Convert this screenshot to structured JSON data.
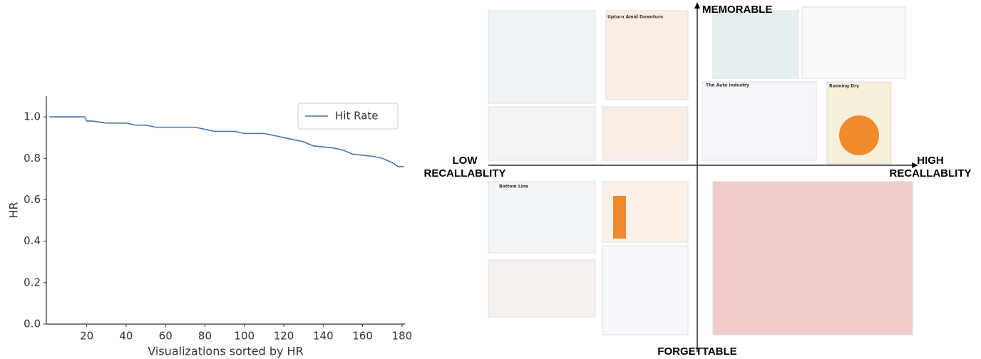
{
  "chart_data": {
    "type": "line",
    "x_label": "Visualizations sorted by HR",
    "y_label": "HR",
    "xlim": [
      -0.5,
      181.5
    ],
    "ylim": [
      0,
      1.1
    ],
    "xticks": [
      20,
      40,
      60,
      80,
      100,
      120,
      140,
      160,
      180
    ],
    "yticks": [
      {
        "value": 0,
        "label": "0.0"
      },
      0.2,
      0.4,
      0.6,
      0.8,
      {
        "value": 1,
        "label": "1.0"
      }
    ],
    "legend": "upper right",
    "series": [
      {
        "name": "Hit Rate",
        "color": "#4c72b0",
        "x": [
          1,
          19,
          20,
          23,
          30,
          40,
          45,
          50,
          55,
          75,
          80,
          85,
          95,
          100,
          110,
          115,
          120,
          125,
          130,
          135,
          145,
          150,
          155,
          165,
          170,
          175,
          178,
          181
        ],
        "values": [
          1.0,
          1.0,
          0.98,
          0.98,
          0.97,
          0.97,
          0.96,
          0.96,
          0.95,
          0.95,
          0.94,
          0.93,
          0.93,
          0.92,
          0.92,
          0.91,
          0.9,
          0.89,
          0.88,
          0.86,
          0.85,
          0.84,
          0.82,
          0.81,
          0.8,
          0.78,
          0.76,
          0.76
        ]
      }
    ]
  },
  "quadrant": {
    "top": "MEMORABLE",
    "bottom": "FORGETTABLE",
    "left": "LOW\nRECALLABLITY",
    "right": "HIGH\nRECALLABLITY"
  },
  "thumbnails": [
    "Upturn Amid Downturn",
    "The Auto Industry",
    "Running Dry",
    "Bottom Line"
  ]
}
